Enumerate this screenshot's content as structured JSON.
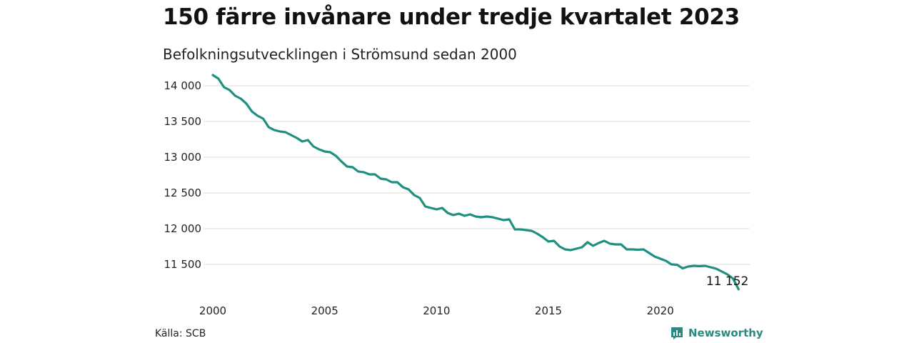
{
  "title": "150 färre invånare under tredje kvartalet 2023",
  "subtitle": "Befolkningsutvecklingen i Strömsund sedan 2000",
  "source": "Källa: SCB",
  "brand": "Newsworthy",
  "colors": {
    "line": "#1f9080",
    "grid": "#dddddd",
    "brand": "#2a8a80"
  },
  "chart_data": {
    "type": "line",
    "title": "150 färre invånare under tredje kvartalet 2023",
    "subtitle": "Befolkningsutvecklingen i Strömsund sedan 2000",
    "xlabel": "",
    "ylabel": "",
    "xlim": [
      2000,
      2024
    ],
    "ylim": [
      11100,
      14200
    ],
    "x_ticks": [
      2000,
      2005,
      2010,
      2015,
      2020
    ],
    "x_tick_labels": [
      "2000",
      "2005",
      "2010",
      "2015",
      "2020"
    ],
    "y_ticks": [
      11500,
      12000,
      12500,
      13000,
      13500,
      14000
    ],
    "y_tick_labels": [
      "11 500",
      "12 000",
      "12 500",
      "13 000",
      "13 500",
      "14 000"
    ],
    "grid": "horizontal",
    "end_label": "11 152",
    "series": [
      {
        "x": [
          2000.0,
          2000.25,
          2000.5,
          2000.75,
          2001.0,
          2001.25,
          2001.5,
          2001.75,
          2002.0,
          2002.25,
          2002.5,
          2002.75,
          2003.0,
          2003.25,
          2003.5,
          2003.75,
          2004.0,
          2004.25,
          2004.5,
          2004.75,
          2005.0,
          2005.25,
          2005.5,
          2005.75,
          2006.0,
          2006.25,
          2006.5,
          2006.75,
          2007.0,
          2007.25,
          2007.5,
          2007.75,
          2008.0,
          2008.25,
          2008.5,
          2008.75,
          2009.0,
          2009.25,
          2009.5,
          2009.75,
          2010.0,
          2010.25,
          2010.5,
          2010.75,
          2011.0,
          2011.25,
          2011.5,
          2011.75,
          2012.0,
          2012.25,
          2012.5,
          2012.75,
          2013.0,
          2013.25,
          2013.5,
          2013.75,
          2014.0,
          2014.25,
          2014.5,
          2014.75,
          2015.0,
          2015.25,
          2015.5,
          2015.75,
          2016.0,
          2016.25,
          2016.5,
          2016.75,
          2017.0,
          2017.25,
          2017.5,
          2017.75,
          2018.0,
          2018.25,
          2018.5,
          2018.75,
          2019.0,
          2019.25,
          2019.5,
          2019.75,
          2020.0,
          2020.25,
          2020.5,
          2020.75,
          2021.0,
          2021.25,
          2021.5,
          2021.75,
          2022.0,
          2022.25,
          2022.5,
          2022.75,
          2023.0,
          2023.25,
          2023.5
        ],
        "values": [
          14150,
          14100,
          13980,
          13940,
          13860,
          13820,
          13750,
          13640,
          13580,
          13540,
          13420,
          13380,
          13360,
          13350,
          13310,
          13270,
          13220,
          13240,
          13150,
          13110,
          13080,
          13070,
          13020,
          12940,
          12870,
          12860,
          12800,
          12790,
          12760,
          12760,
          12700,
          12690,
          12650,
          12650,
          12580,
          12550,
          12470,
          12430,
          12310,
          12290,
          12270,
          12290,
          12220,
          12190,
          12210,
          12180,
          12200,
          12170,
          12160,
          12170,
          12160,
          12140,
          12120,
          12130,
          11990,
          11990,
          11980,
          11970,
          11930,
          11880,
          11820,
          11830,
          11750,
          11710,
          11700,
          11720,
          11740,
          11810,
          11760,
          11800,
          11830,
          11790,
          11780,
          11780,
          11710,
          11710,
          11705,
          11710,
          11660,
          11610,
          11580,
          11550,
          11500,
          11495,
          11445,
          11470,
          11480,
          11475,
          11480,
          11460,
          11440,
          11400,
          11360,
          11302,
          11152
        ]
      }
    ]
  }
}
